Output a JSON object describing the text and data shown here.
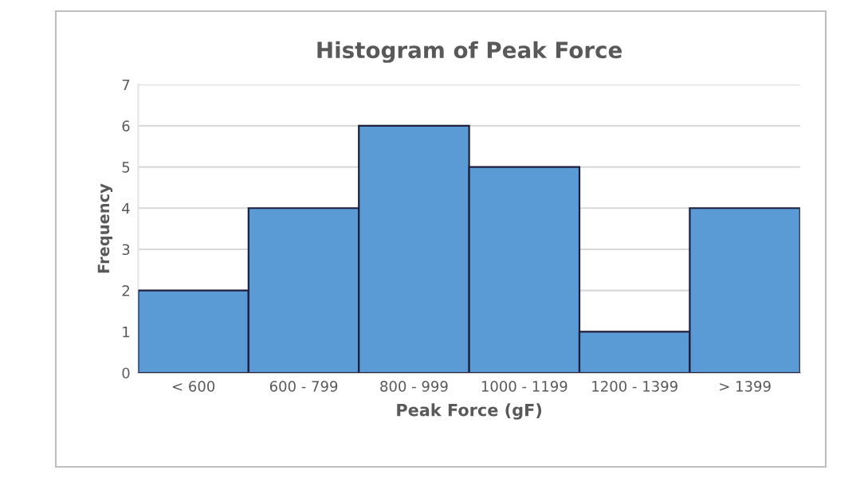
{
  "chart_data": {
    "type": "bar",
    "title": "Histogram of Peak Force",
    "xlabel": "Peak Force (gF)",
    "ylabel": "Frequency",
    "categories": [
      "< 600",
      "600 - 799",
      "800 - 999",
      "1000 - 1199",
      "1200 - 1399",
      "> 1399"
    ],
    "values": [
      2,
      4,
      6,
      5,
      1,
      4
    ],
    "color": "#5b9bd5",
    "ylim": [
      0,
      7
    ],
    "yticks": [
      0,
      1,
      2,
      3,
      4,
      5,
      6,
      7
    ],
    "grid": "y",
    "legend": false
  }
}
